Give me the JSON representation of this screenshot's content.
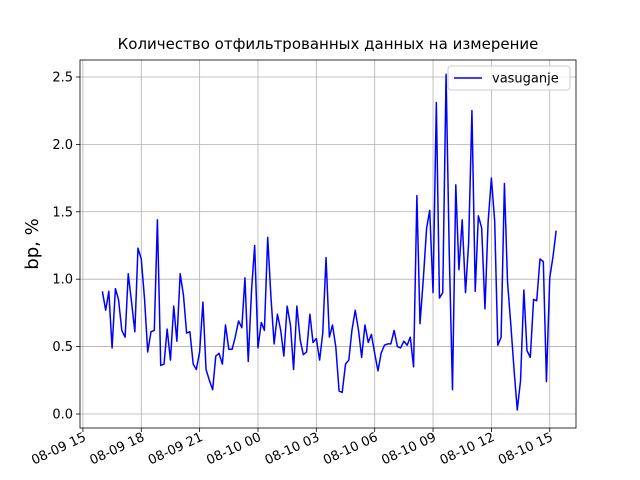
{
  "chart_data": {
    "type": "line",
    "title": "Количество отфильтрованных данных на измерение",
    "y_label": "bp, %",
    "xlim": [
      14.85,
      40.35
    ],
    "ylim": [
      -0.104,
      2.626
    ],
    "xticks": [
      {
        "value": 15,
        "label": "08-09 15"
      },
      {
        "value": 18,
        "label": "08-09 18"
      },
      {
        "value": 21,
        "label": "08-09 21"
      },
      {
        "value": 24,
        "label": "08-10 00"
      },
      {
        "value": 27,
        "label": "08-10 03"
      },
      {
        "value": 30,
        "label": "08-10 06"
      },
      {
        "value": 33,
        "label": "08-10 09"
      },
      {
        "value": 36,
        "label": "08-10 12"
      },
      {
        "value": 39,
        "label": "08-10 15"
      }
    ],
    "yticks": [
      {
        "value": 0,
        "label": "0.0"
      },
      0.5,
      {
        "value": 1,
        "label": "1.0"
      },
      1.5,
      {
        "value": 2,
        "label": "2.0"
      },
      2.5
    ],
    "grid": true,
    "legend": "upper right",
    "x": [
      16,
      16.17,
      16.33,
      16.5,
      16.67,
      16.83,
      17,
      17.17,
      17.33,
      17.5,
      17.67,
      17.83,
      18,
      18.17,
      18.33,
      18.5,
      18.67,
      18.83,
      19,
      19.17,
      19.33,
      19.5,
      19.67,
      19.83,
      20,
      20.17,
      20.33,
      20.5,
      20.67,
      20.83,
      21,
      21.17,
      21.33,
      21.5,
      21.67,
      21.83,
      22,
      22.17,
      22.33,
      22.5,
      22.67,
      22.83,
      23,
      23.17,
      23.33,
      23.5,
      23.67,
      23.83,
      24,
      24.17,
      24.33,
      24.5,
      24.67,
      24.83,
      25,
      25.17,
      25.33,
      25.5,
      25.67,
      25.83,
      26,
      26.17,
      26.33,
      26.5,
      26.67,
      26.83,
      27,
      27.17,
      27.33,
      27.5,
      27.67,
      27.83,
      28,
      28.17,
      28.33,
      28.5,
      28.67,
      28.83,
      29,
      29.17,
      29.33,
      29.5,
      29.67,
      29.83,
      30,
      30.17,
      30.33,
      30.5,
      30.67,
      30.83,
      31,
      31.17,
      31.33,
      31.5,
      31.67,
      31.83,
      32,
      32.17,
      32.33,
      32.5,
      32.67,
      32.83,
      33,
      33.17,
      33.33,
      33.5,
      33.67,
      33.83,
      34,
      34.17,
      34.33,
      34.5,
      34.67,
      34.83,
      35,
      35.17,
      35.33,
      35.5,
      35.67,
      35.83,
      36,
      36.17,
      36.33,
      36.5,
      36.67,
      36.83,
      37,
      37.17,
      37.33,
      37.5,
      37.67,
      37.83,
      38,
      38.17,
      38.33,
      38.5,
      38.67,
      38.83,
      39,
      39.17,
      39.33
    ],
    "series": [
      {
        "name": "vasuganje",
        "color": "#0000ff",
        "values": [
          0.91,
          0.77,
          0.91,
          0.49,
          0.93,
          0.85,
          0.62,
          0.57,
          1.04,
          0.83,
          0.61,
          1.23,
          1.15,
          0.85,
          0.46,
          0.61,
          0.62,
          1.44,
          0.36,
          0.37,
          0.63,
          0.4,
          0.8,
          0.54,
          1.04,
          0.88,
          0.6,
          0.61,
          0.37,
          0.33,
          0.46,
          0.83,
          0.33,
          0.25,
          0.18,
          0.43,
          0.45,
          0.37,
          0.66,
          0.48,
          0.48,
          0.57,
          0.69,
          0.64,
          1.01,
          0.39,
          0.92,
          1.25,
          0.49,
          0.68,
          0.62,
          1.31,
          0.86,
          0.52,
          0.74,
          0.62,
          0.43,
          0.8,
          0.66,
          0.33,
          0.8,
          0.55,
          0.44,
          0.46,
          0.74,
          0.53,
          0.56,
          0.4,
          0.6,
          1.16,
          0.57,
          0.66,
          0.5,
          0.17,
          0.16,
          0.37,
          0.4,
          0.62,
          0.77,
          0.62,
          0.42,
          0.66,
          0.53,
          0.59,
          0.45,
          0.32,
          0.45,
          0.51,
          0.52,
          0.52,
          0.62,
          0.5,
          0.49,
          0.54,
          0.51,
          0.57,
          0.35,
          1.62,
          0.67,
          1.0,
          1.38,
          1.51,
          0.9,
          2.31,
          0.86,
          0.9,
          2.52,
          1.22,
          0.18,
          1.7,
          1.07,
          1.44,
          0.9,
          1.27,
          2.25,
          0.91,
          1.47,
          1.38,
          0.78,
          1.42,
          1.75,
          1.43,
          0.51,
          0.57,
          1.71,
          0.98,
          0.66,
          0.32,
          0.03,
          0.25,
          0.92,
          0.47,
          0.42,
          0.85,
          0.84,
          1.15,
          1.13,
          0.24,
          1.01,
          1.17,
          1.36
        ]
      }
    ]
  }
}
